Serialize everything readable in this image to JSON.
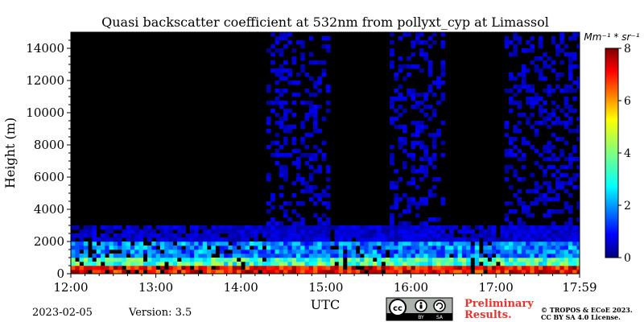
{
  "chart_data": {
    "type": "heatmap",
    "title": "Quasi backscatter coefficient at 532nm from pollyxt_cyp at Limassol",
    "xlabel": "UTC",
    "ylabel": "Height (m)",
    "x_ticks": [
      "12:00",
      "13:00",
      "14:00",
      "15:00",
      "16:00",
      "17:00",
      "17:59"
    ],
    "x_range": [
      "12:00",
      "17:59"
    ],
    "y_ticks": [
      0,
      2000,
      4000,
      6000,
      8000,
      10000,
      12000,
      14000
    ],
    "ylim": [
      0,
      15000
    ],
    "colorbar": {
      "label": "Mm⁻¹ * sr⁻¹",
      "ticks": [
        0,
        2,
        4,
        6,
        8
      ],
      "range": [
        0,
        8
      ],
      "colormap": "jet"
    },
    "features": [
      {
        "name": "no-data gap",
        "from": "12:00",
        "to": "14:17"
      },
      {
        "name": "no-data gap",
        "from": "15:03",
        "to": "15:45"
      },
      {
        "name": "no-data gap",
        "from": "16:23",
        "to": "17:05"
      }
    ],
    "colors": {
      "no_data": "#000000",
      "cloud_saturation": "#ffffff",
      "background_low": "#0d1b8c",
      "signal_mid": "#1f8fe0",
      "signal_high": "#e0201a"
    }
  },
  "footer": {
    "date": "2023-02-05",
    "version": "Version: 3.5",
    "preliminary": "Preliminary",
    "results": "Results.",
    "copyright_line1": "© TROPOS & ECoE 2023.",
    "copyright_line2": "CC BY SA 4.0 License.",
    "license_badge": {
      "icons": [
        "cc-icon",
        "by-icon",
        "sa-icon"
      ],
      "by_label": "BY",
      "sa_label": "SA"
    }
  }
}
